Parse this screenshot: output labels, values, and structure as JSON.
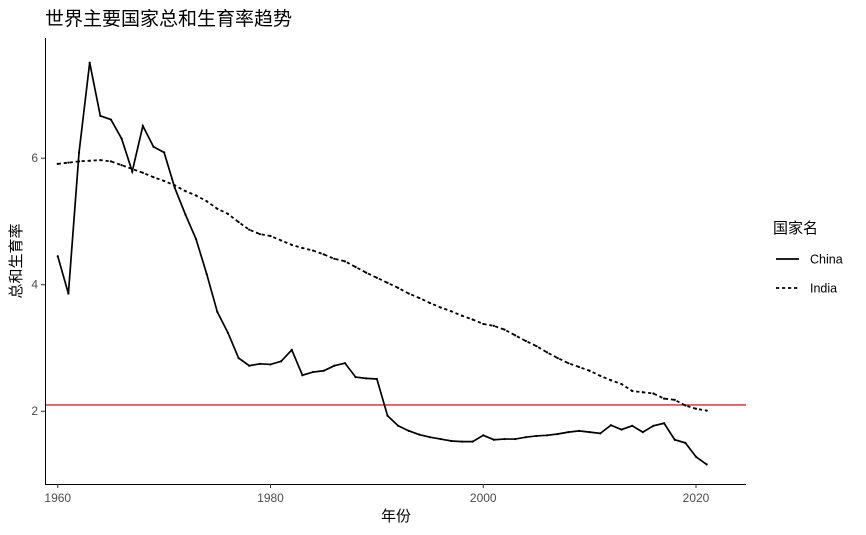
{
  "chart_data": {
    "type": "line",
    "title": "世界主要国家总和生育率趋势",
    "xlabel": "年份",
    "ylabel": "总和生育率",
    "xlim": [
      1958.8,
      2024.7
    ],
    "ylim": [
      0.85,
      7.9
    ],
    "xticks": [
      1960,
      1980,
      2000,
      2020
    ],
    "yticks": [
      2,
      4,
      6
    ],
    "grid": false,
    "legend": {
      "title": "国家名",
      "position": "right"
    },
    "reference_line": {
      "y": 2.1,
      "color": "#d62728"
    },
    "series": [
      {
        "name": "China",
        "linestyle": "solid",
        "x": [
          1960,
          1961,
          1962,
          1963,
          1964,
          1965,
          1966,
          1967,
          1968,
          1969,
          1970,
          1971,
          1972,
          1973,
          1974,
          1975,
          1976,
          1977,
          1978,
          1979,
          1980,
          1981,
          1982,
          1983,
          1984,
          1985,
          1986,
          1987,
          1988,
          1989,
          1990,
          1991,
          1992,
          1993,
          1994,
          1995,
          1996,
          1997,
          1998,
          1999,
          2000,
          2001,
          2002,
          2003,
          2004,
          2005,
          2006,
          2007,
          2008,
          2009,
          2010,
          2011,
          2012,
          2013,
          2014,
          2015,
          2016,
          2017,
          2018,
          2019,
          2020,
          2021
        ],
        "values": [
          4.45,
          3.86,
          6.09,
          7.51,
          6.67,
          6.61,
          6.31,
          5.79,
          6.51,
          6.18,
          6.09,
          5.53,
          5.11,
          4.72,
          4.17,
          3.57,
          3.24,
          2.84,
          2.72,
          2.75,
          2.74,
          2.79,
          2.97,
          2.57,
          2.62,
          2.64,
          2.72,
          2.76,
          2.54,
          2.52,
          2.51,
          1.93,
          1.77,
          1.69,
          1.63,
          1.59,
          1.56,
          1.53,
          1.52,
          1.52,
          1.62,
          1.55,
          1.56,
          1.56,
          1.59,
          1.61,
          1.62,
          1.64,
          1.67,
          1.69,
          1.67,
          1.65,
          1.78,
          1.71,
          1.77,
          1.67,
          1.77,
          1.81,
          1.55,
          1.5,
          1.28,
          1.16
        ]
      },
      {
        "name": "India",
        "linestyle": "dotted",
        "x": [
          1960,
          1961,
          1962,
          1963,
          1964,
          1965,
          1966,
          1967,
          1968,
          1969,
          1970,
          1971,
          1972,
          1973,
          1974,
          1975,
          1976,
          1977,
          1978,
          1979,
          1980,
          1981,
          1982,
          1983,
          1984,
          1985,
          1986,
          1987,
          1988,
          1989,
          1990,
          1991,
          1992,
          1993,
          1994,
          1995,
          1996,
          1997,
          1998,
          1999,
          2000,
          2001,
          2002,
          2003,
          2004,
          2005,
          2006,
          2007,
          2008,
          2009,
          2010,
          2011,
          2012,
          2013,
          2014,
          2015,
          2016,
          2017,
          2018,
          2019,
          2020,
          2021
        ],
        "values": [
          5.91,
          5.93,
          5.95,
          5.96,
          5.97,
          5.95,
          5.89,
          5.83,
          5.77,
          5.7,
          5.64,
          5.57,
          5.48,
          5.41,
          5.32,
          5.2,
          5.12,
          4.99,
          4.87,
          4.8,
          4.77,
          4.7,
          4.63,
          4.58,
          4.54,
          4.48,
          4.41,
          4.37,
          4.28,
          4.19,
          4.11,
          4.03,
          3.95,
          3.86,
          3.79,
          3.71,
          3.64,
          3.58,
          3.51,
          3.45,
          3.38,
          3.35,
          3.29,
          3.2,
          3.11,
          3.03,
          2.93,
          2.84,
          2.76,
          2.7,
          2.64,
          2.56,
          2.49,
          2.43,
          2.32,
          2.3,
          2.28,
          2.2,
          2.18,
          2.09,
          2.04,
          2.01
        ]
      }
    ]
  }
}
